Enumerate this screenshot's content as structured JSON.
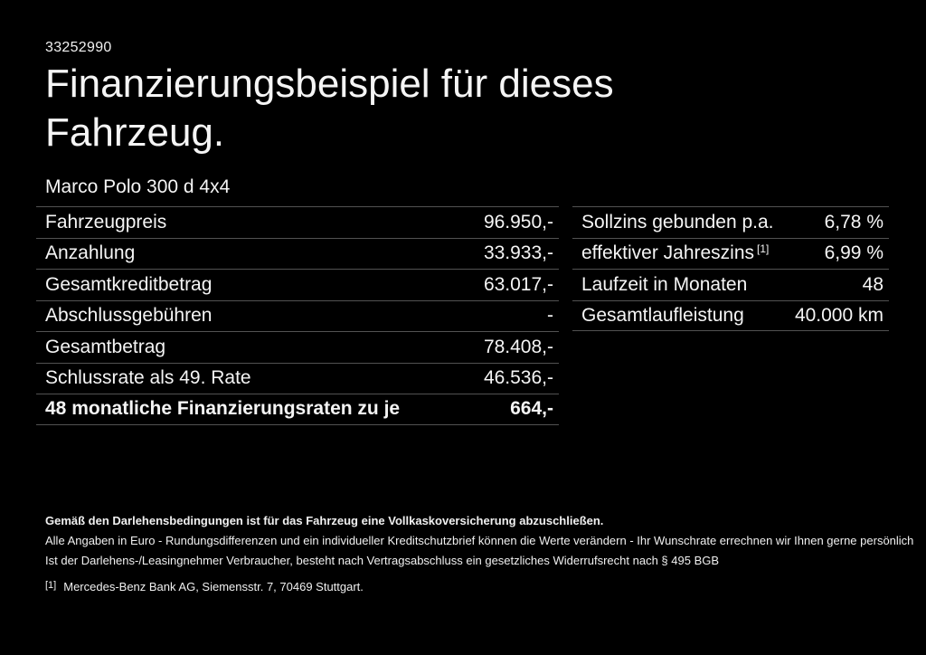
{
  "page": {
    "background_color": "#000000",
    "text_color": "#f5f5f5",
    "divider_color": "#525252"
  },
  "header": {
    "vehicle_id": "33252990",
    "title": "Finanzierungsbeispiel für dieses Fahrzeug.",
    "model": "Marco Polo 300 d 4x4"
  },
  "left_table": {
    "rows": [
      {
        "label": "Fahrzeugpreis",
        "value": "96.950,-",
        "bold": false
      },
      {
        "label": "Anzahlung",
        "value": "33.933,-",
        "bold": false
      },
      {
        "label": "Gesamtkreditbetrag",
        "value": "63.017,-",
        "bold": false
      },
      {
        "label": "Abschlussgebühren",
        "value": "-",
        "bold": false
      },
      {
        "label": "Gesamtbetrag",
        "value": "78.408,-",
        "bold": false
      },
      {
        "label": "Schlussrate als 49. Rate",
        "value": "46.536,-",
        "bold": false
      },
      {
        "label": "48 monatliche Finanzierungsraten zu je",
        "value": "664,-",
        "bold": true
      }
    ]
  },
  "right_table": {
    "rows": [
      {
        "label": "Sollzins gebunden p.a.",
        "value": "6,78 %",
        "bold": false
      },
      {
        "label": "effektiver Jahreszins",
        "label_sup": "[1]",
        "value": "6,99 %",
        "bold": false
      },
      {
        "label": "Laufzeit in Monaten",
        "value": "48",
        "bold": false
      },
      {
        "label": "Gesamtlaufleistung",
        "value": "40.000 km",
        "bold": false
      }
    ]
  },
  "footer": {
    "insurance_note": "Gemäß den Darlehensbedingungen ist für das Fahrzeug eine Vollkaskoversicherung abzuschließen.",
    "disclaimer_line1": "Alle Angaben in Euro - Rundungsdifferenzen und ein individueller Kreditschutzbrief können die Werte verändern - Ihr Wunschrate errechnen wir Ihnen gerne persönlich",
    "disclaimer_line2": "Ist der Darlehens-/Leasingnehmer Verbraucher, besteht nach Vertragsabschluss ein gesetzliches Widerrufsrecht nach § 495 BGB",
    "footnote_marker": "[1]",
    "footnote_text": "Mercedes-Benz Bank AG, Siemensstr. 7, 70469 Stuttgart."
  }
}
